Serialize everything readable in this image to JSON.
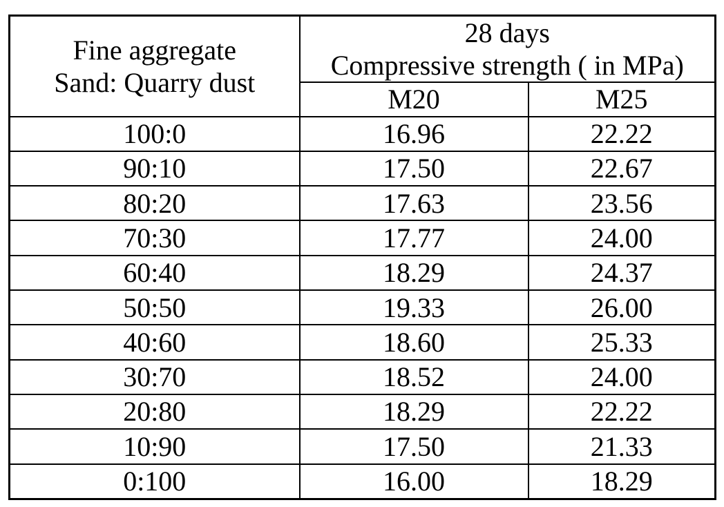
{
  "colors": {
    "background": "#ffffff",
    "text": "#000000",
    "border": "#000000"
  },
  "table": {
    "header": {
      "left": {
        "line1": "Fine aggregate",
        "line2": "Sand: Quarry dust"
      },
      "right": {
        "line1": "28 days",
        "line2": "Compressive strength ( in MPa)"
      },
      "columns": [
        "M20",
        "M25"
      ]
    },
    "rows": [
      {
        "ratio": "100:0",
        "m20": "16.96",
        "m25": "22.22"
      },
      {
        "ratio": "90:10",
        "m20": "17.50",
        "m25": "22.67"
      },
      {
        "ratio": "80:20",
        "m20": "17.63",
        "m25": "23.56"
      },
      {
        "ratio": "70:30",
        "m20": "17.77",
        "m25": "24.00"
      },
      {
        "ratio": "60:40",
        "m20": "18.29",
        "m25": "24.37"
      },
      {
        "ratio": "50:50",
        "m20": "19.33",
        "m25": "26.00"
      },
      {
        "ratio": "40:60",
        "m20": "18.60",
        "m25": "25.33"
      },
      {
        "ratio": "30:70",
        "m20": "18.52",
        "m25": "24.00"
      },
      {
        "ratio": "20:80",
        "m20": "18.29",
        "m25": "22.22"
      },
      {
        "ratio": "10:90",
        "m20": "17.50",
        "m25": "21.33"
      },
      {
        "ratio": "0:100",
        "m20": "16.00",
        "m25": "18.29"
      }
    ]
  }
}
